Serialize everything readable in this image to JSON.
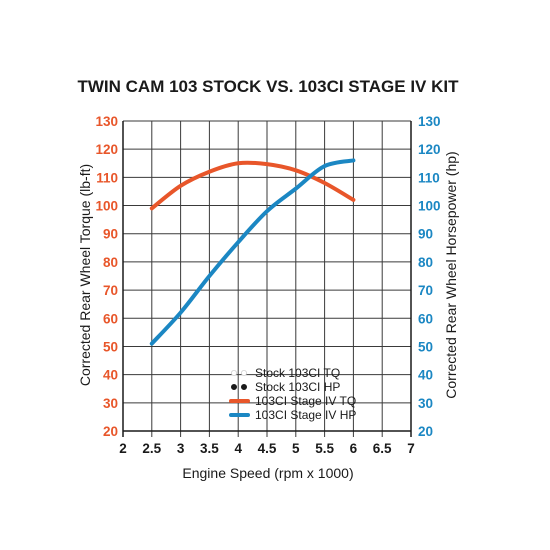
{
  "chart_data": {
    "type": "line",
    "title": "TWIN CAM 103 STOCK VS. 103CI STAGE IV KIT",
    "xlabel": "Engine Speed (rpm x 1000)",
    "ylabel_left": "Corrected Rear Wheel Torque (lb-ft)",
    "ylabel_right": "Corrected Rear Wheel Horsepower (hp)",
    "xlim": [
      2,
      7
    ],
    "ylim": [
      20,
      130
    ],
    "x_ticks": [
      "2",
      "2.5",
      "3",
      "3.5",
      "4",
      "4.5",
      "5",
      "5.5",
      "6",
      "6.5",
      "7"
    ],
    "y_ticks": [
      "20",
      "30",
      "40",
      "50",
      "60",
      "70",
      "80",
      "90",
      "100",
      "110",
      "120",
      "130"
    ],
    "grid": true,
    "legend_position": "bottom-center",
    "legend": [
      {
        "name": "Stock 103CI TQ",
        "style": "dots",
        "color": "#ffffff"
      },
      {
        "name": "Stock 103CI HP",
        "style": "dots",
        "color": "#1a1a1a"
      },
      {
        "name": "103CI Stage IV TQ",
        "style": "line",
        "color": "#e8562a"
      },
      {
        "name": "103CI Stage IV HP",
        "style": "line",
        "color": "#1b87c3"
      }
    ],
    "series": [
      {
        "name": "103CI Stage IV TQ",
        "color": "#e8562a",
        "x": [
          2.5,
          3,
          3.5,
          4,
          4.5,
          5,
          5.5,
          6
        ],
        "y": [
          99,
          107,
          112,
          115,
          114.7,
          112.5,
          108,
          102
        ]
      },
      {
        "name": "103CI Stage IV HP",
        "color": "#1b87c3",
        "x": [
          2.5,
          3,
          3.5,
          4,
          4.5,
          5,
          5.5,
          6
        ],
        "y": [
          51,
          62,
          75,
          87,
          98,
          106,
          114,
          116
        ]
      }
    ]
  }
}
